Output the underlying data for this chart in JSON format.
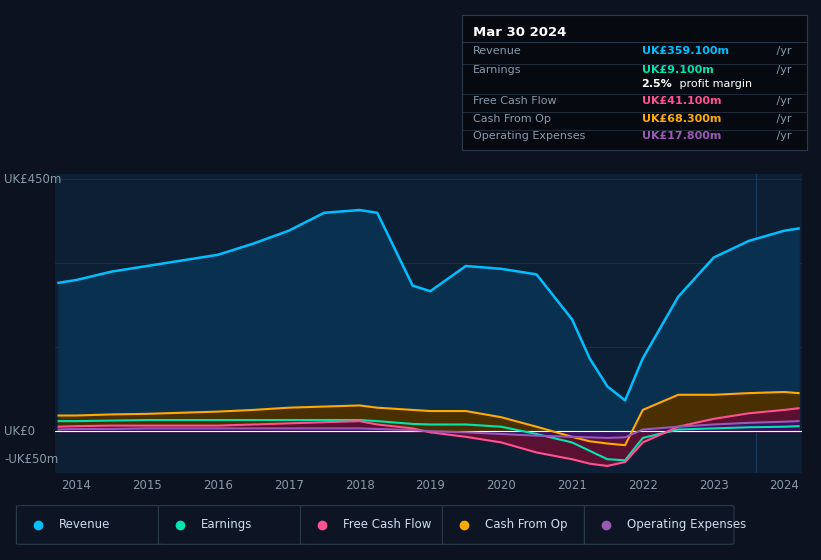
{
  "bg_color": "#0c1220",
  "plot_bg_color": "#0d1f35",
  "top_area_color": "#0c1220",
  "years": [
    2013.75,
    2014.0,
    2014.5,
    2015.0,
    2015.5,
    2016.0,
    2016.5,
    2017.0,
    2017.5,
    2018.0,
    2018.25,
    2018.75,
    2019.0,
    2019.5,
    2020.0,
    2020.5,
    2021.0,
    2021.25,
    2021.5,
    2021.75,
    2022.0,
    2022.5,
    2023.0,
    2023.5,
    2024.0,
    2024.2
  ],
  "revenue": [
    265,
    270,
    285,
    295,
    305,
    315,
    335,
    358,
    390,
    395,
    390,
    260,
    250,
    295,
    290,
    280,
    200,
    130,
    80,
    55,
    130,
    240,
    310,
    340,
    358,
    362
  ],
  "earnings": [
    18,
    18,
    19,
    20,
    20,
    20,
    20,
    20,
    20,
    20,
    18,
    13,
    12,
    12,
    8,
    -5,
    -20,
    -35,
    -50,
    -52,
    -12,
    3,
    5,
    7,
    8,
    9
  ],
  "free_cash_flow": [
    8,
    9,
    10,
    10,
    10,
    10,
    12,
    14,
    16,
    18,
    12,
    5,
    -2,
    -10,
    -20,
    -38,
    -50,
    -58,
    -62,
    -55,
    -20,
    8,
    22,
    32,
    38,
    41
  ],
  "cash_from_op": [
    28,
    28,
    30,
    31,
    33,
    35,
    38,
    42,
    44,
    46,
    42,
    38,
    36,
    36,
    25,
    8,
    -10,
    -18,
    -22,
    -25,
    38,
    65,
    65,
    68,
    70,
    68
  ],
  "operating_expenses": [
    3,
    4,
    4,
    5,
    5,
    5,
    5,
    5,
    5,
    5,
    4,
    2,
    0,
    -2,
    -5,
    -8,
    -10,
    -11,
    -12,
    -11,
    3,
    8,
    12,
    15,
    17,
    18
  ],
  "ylim_min": -75,
  "ylim_max": 460,
  "revenue_color": "#00bfff",
  "earnings_color": "#00e5b0",
  "fcf_color": "#ff5090",
  "cashop_color": "#ffaa00",
  "opex_color": "#9b59b6",
  "revenue_fill": "#0a3050",
  "earnings_fill": "#0a3d30",
  "fcf_fill": "#5a1030",
  "cashop_fill": "#4a3000",
  "opex_fill": "#3a1060",
  "table_title": "Mar 30 2024",
  "table_rows": [
    {
      "label": "Revenue",
      "value": "UK£359.100m",
      "suffix": " /yr",
      "color": "#00bfff"
    },
    {
      "label": "Earnings",
      "value": "UK£9.100m",
      "suffix": " /yr",
      "color": "#00e5b0"
    },
    {
      "label": "",
      "value": "2.5%",
      "suffix": " profit margin",
      "color": "#ffffff"
    },
    {
      "label": "Free Cash Flow",
      "value": "UK£41.100m",
      "suffix": " /yr",
      "color": "#ff5090"
    },
    {
      "label": "Cash From Op",
      "value": "UK£68.300m",
      "suffix": " /yr",
      "color": "#ffaa00"
    },
    {
      "label": "Operating Expenses",
      "value": "UK£17.800m",
      "suffix": " /yr",
      "color": "#9b59b6"
    }
  ],
  "legend_items": [
    {
      "label": "Revenue",
      "color": "#00bfff"
    },
    {
      "label": "Earnings",
      "color": "#00e5b0"
    },
    {
      "label": "Free Cash Flow",
      "color": "#ff5090"
    },
    {
      "label": "Cash From Op",
      "color": "#ffaa00"
    },
    {
      "label": "Operating Expenses",
      "color": "#9b59b6"
    }
  ],
  "xtick_years": [
    2014,
    2015,
    2016,
    2017,
    2018,
    2019,
    2020,
    2021,
    2022,
    2023,
    2024
  ],
  "grid_lines": [
    150,
    300,
    450
  ],
  "zero_line_color": "#ffffff",
  "grid_color": "#1a3050",
  "vline_x": 2023.6,
  "vline_color": "#1a3a5c"
}
